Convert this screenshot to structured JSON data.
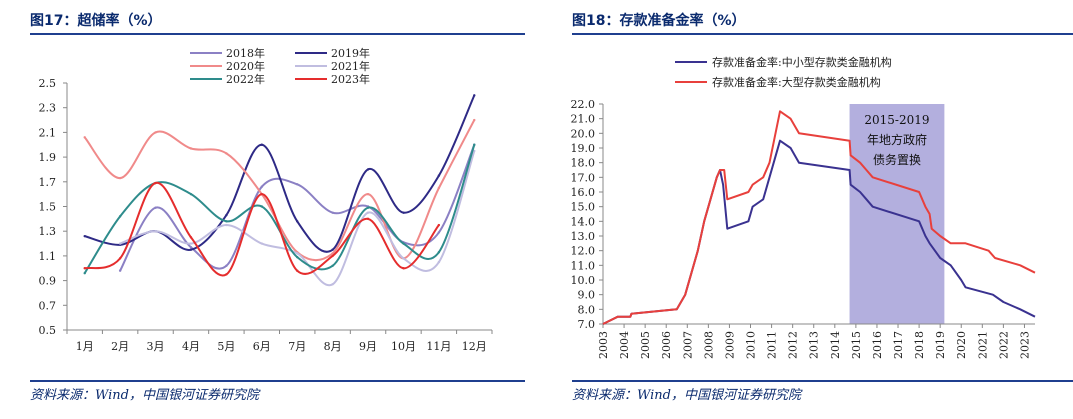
{
  "left": {
    "title": "图17：超储率（%）",
    "source": "资料来源：Wind，中国银河证券研究院"
  },
  "right": {
    "title": "图18：存款准备金率（%）",
    "source": "资料来源：Wind，中国银河证券研究院"
  },
  "chart_data": [
    {
      "type": "line",
      "categories": [
        "1月",
        "2月",
        "3月",
        "4月",
        "5月",
        "6月",
        "7月",
        "8月",
        "9月",
        "10月",
        "11月",
        "12月"
      ],
      "ylim": [
        0.5,
        2.5
      ],
      "yticks": [
        0.5,
        0.7,
        0.9,
        1.1,
        1.3,
        1.5,
        1.7,
        1.9,
        2.1,
        2.3,
        2.5
      ],
      "ytick_labels": [
        "0.5",
        "0.7",
        "0.9",
        "1.1",
        "1.3",
        "1.5",
        "1.7",
        "1.9",
        "2.1",
        "2.3",
        "2.5"
      ],
      "legend_position": "top",
      "grid": false,
      "series": [
        {
          "name": "2018年",
          "color": "#8b80c4",
          "values": [
            null,
            0.98,
            1.49,
            1.17,
            1.02,
            1.66,
            1.68,
            1.45,
            1.5,
            1.21,
            1.29,
            2.0
          ]
        },
        {
          "name": "2019年",
          "color": "#2e2a86",
          "values": [
            1.26,
            1.19,
            1.3,
            1.15,
            1.43,
            2.0,
            1.38,
            1.15,
            1.8,
            1.45,
            1.75,
            2.4
          ]
        },
        {
          "name": "2020年",
          "color": "#f08a8a",
          "values": [
            2.06,
            1.73,
            2.1,
            1.97,
            1.93,
            1.6,
            1.13,
            1.12,
            1.6,
            1.08,
            1.65,
            2.2
          ]
        },
        {
          "name": "2021年",
          "color": "#c0bde0",
          "values": [
            null,
            1.2,
            1.3,
            1.2,
            1.35,
            1.2,
            1.12,
            0.87,
            1.45,
            1.08,
            1.05,
            1.95
          ]
        },
        {
          "name": "2022年",
          "color": "#2e8c8c",
          "values": [
            0.96,
            1.42,
            1.69,
            1.6,
            1.38,
            1.5,
            1.09,
            1.02,
            1.49,
            1.2,
            1.13,
            2.0
          ]
        },
        {
          "name": "2023年",
          "color": "#e52d2d",
          "values": [
            1.0,
            1.08,
            1.69,
            1.25,
            0.95,
            1.6,
            0.98,
            1.1,
            1.4,
            1.0,
            1.35,
            null
          ]
        }
      ]
    },
    {
      "type": "line",
      "x_range": [
        2003,
        2023.5
      ],
      "ylim": [
        7.0,
        22.0
      ],
      "yticks": [
        7.0,
        8.0,
        9.0,
        10.0,
        11.0,
        12.0,
        13.0,
        14.0,
        15.0,
        16.0,
        17.0,
        18.0,
        19.0,
        20.0,
        21.0,
        22.0
      ],
      "ytick_labels": [
        "7.0",
        "8.0",
        "9.0",
        "10.0",
        "11.0",
        "12.0",
        "13.0",
        "14.0",
        "15.0",
        "16.0",
        "17.0",
        "18.0",
        "19.0",
        "20.0",
        "21.0",
        "22.0"
      ],
      "xticks": [
        2003,
        2004,
        2005,
        2006,
        2007,
        2008,
        2009,
        2010,
        2011,
        2012,
        2013,
        2014,
        2015,
        2016,
        2017,
        2018,
        2019,
        2020,
        2021,
        2022,
        2023
      ],
      "xtick_labels": [
        "2003",
        "2004",
        "2005",
        "2006",
        "2007",
        "2008",
        "2009",
        "2010",
        "2011",
        "2012",
        "2013",
        "2014",
        "2015",
        "2016",
        "2017",
        "2018",
        "2019",
        "2020",
        "2021",
        "2022",
        "2023"
      ],
      "legend_position": "top",
      "grid": false,
      "shaded_region": {
        "from": 2014.7,
        "to": 2019.2,
        "color": "#a6a1d8",
        "label": "2015-2019年地方政府债务置换"
      },
      "series": [
        {
          "name": "存款准备金率:中小型存款类金融机构",
          "color": "#3a3290",
          "points": [
            [
              2003.0,
              7.0
            ],
            [
              2003.7,
              7.5
            ],
            [
              2004.3,
              7.5
            ],
            [
              2004.35,
              7.7
            ],
            [
              2006.5,
              8.0
            ],
            [
              2006.9,
              9.0
            ],
            [
              2007.2,
              10.5
            ],
            [
              2007.5,
              12.0
            ],
            [
              2007.8,
              14.0
            ],
            [
              2008.1,
              15.5
            ],
            [
              2008.4,
              17.0
            ],
            [
              2008.55,
              17.5
            ],
            [
              2008.7,
              16.5
            ],
            [
              2008.9,
              13.5
            ],
            [
              2009.9,
              14.0
            ],
            [
              2010.1,
              15.0
            ],
            [
              2010.6,
              15.5
            ],
            [
              2010.9,
              17.0
            ],
            [
              2011.4,
              19.5
            ],
            [
              2011.9,
              19.0
            ],
            [
              2012.3,
              18.0
            ],
            [
              2014.7,
              17.5
            ],
            [
              2014.75,
              16.5
            ],
            [
              2015.2,
              16.0
            ],
            [
              2015.5,
              15.5
            ],
            [
              2015.8,
              15.0
            ],
            [
              2018.0,
              14.0
            ],
            [
              2018.3,
              13.0
            ],
            [
              2018.5,
              12.5
            ],
            [
              2019.0,
              11.5
            ],
            [
              2019.5,
              11.0
            ],
            [
              2020.0,
              10.0
            ],
            [
              2020.2,
              9.5
            ],
            [
              2021.5,
              9.0
            ],
            [
              2022.0,
              8.5
            ],
            [
              2022.8,
              8.0
            ],
            [
              2023.5,
              7.5
            ]
          ]
        },
        {
          "name": "存款准备金率:大型存款类金融机构",
          "color": "#e8403c",
          "points": [
            [
              2003.0,
              7.0
            ],
            [
              2003.7,
              7.5
            ],
            [
              2004.3,
              7.5
            ],
            [
              2004.35,
              7.7
            ],
            [
              2006.5,
              8.0
            ],
            [
              2006.9,
              9.0
            ],
            [
              2007.2,
              10.5
            ],
            [
              2007.5,
              12.0
            ],
            [
              2007.8,
              14.0
            ],
            [
              2008.1,
              15.5
            ],
            [
              2008.4,
              17.0
            ],
            [
              2008.55,
              17.5
            ],
            [
              2008.75,
              17.5
            ],
            [
              2008.9,
              15.5
            ],
            [
              2009.9,
              16.0
            ],
            [
              2010.1,
              16.5
            ],
            [
              2010.6,
              17.0
            ],
            [
              2010.9,
              18.0
            ],
            [
              2011.4,
              21.5
            ],
            [
              2011.9,
              21.0
            ],
            [
              2012.3,
              20.0
            ],
            [
              2014.7,
              19.5
            ],
            [
              2014.75,
              18.5
            ],
            [
              2015.2,
              18.0
            ],
            [
              2015.5,
              17.5
            ],
            [
              2015.8,
              17.0
            ],
            [
              2018.0,
              16.0
            ],
            [
              2018.3,
              15.0
            ],
            [
              2018.5,
              14.5
            ],
            [
              2018.6,
              13.5
            ],
            [
              2019.0,
              13.0
            ],
            [
              2019.5,
              12.5
            ],
            [
              2020.2,
              12.5
            ],
            [
              2021.3,
              12.0
            ],
            [
              2021.6,
              11.5
            ],
            [
              2022.8,
              11.0
            ],
            [
              2023.5,
              10.5
            ]
          ]
        }
      ]
    }
  ]
}
